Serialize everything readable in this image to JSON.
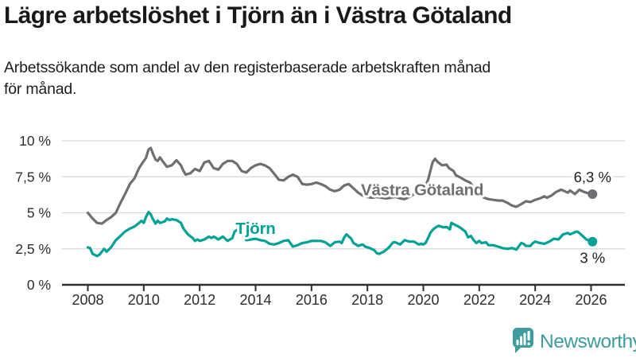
{
  "title": "Lägre arbetslöshet i Tjörn än i Västra Götaland",
  "subtitle": {
    "line1": "Arbetssökande som andel av den registerbaserade arbetskraften månad",
    "line2": "för månad."
  },
  "branding": {
    "logo_text": "Newsworthy",
    "logo_icon": "bar-chart-speech-bubble-icon"
  },
  "colors": {
    "background": "#ffffff",
    "tjorn_line": "#00a296",
    "vastra_line": "#6e6e73",
    "gridline": "#d8d8d8",
    "axis": "#2d2d2d",
    "tick_label": "#2d2d2d",
    "annotation_text": "#1f1f1f",
    "brand_teal": "#3f9c9c"
  },
  "chart_data": {
    "type": "line",
    "title": "Lägre arbetslöshet i Tjörn än i Västra Götaland",
    "xlabel": "",
    "ylabel": "",
    "grid": true,
    "ylim": [
      0,
      10
    ],
    "xlim": [
      2007.1,
      2027.2
    ],
    "y_ticks": [
      {
        "value": 10,
        "label": "10 %"
      },
      {
        "value": 7.5,
        "label": "7,5 %"
      },
      {
        "value": 5,
        "label": "5 %"
      },
      {
        "value": 2.5,
        "label": "2,5 %"
      },
      {
        "value": 0,
        "label": "0 %"
      }
    ],
    "x_ticks": [
      {
        "value": 2008,
        "label": "2008"
      },
      {
        "value": 2010,
        "label": "2010"
      },
      {
        "value": 2012,
        "label": "2012"
      },
      {
        "value": 2014,
        "label": "2014"
      },
      {
        "value": 2016,
        "label": "2016"
      },
      {
        "value": 2018,
        "label": "2018"
      },
      {
        "value": 2020,
        "label": "2020"
      },
      {
        "value": 2022,
        "label": "2022"
      },
      {
        "value": 2024,
        "label": "2024"
      },
      {
        "value": 2026,
        "label": "2026"
      }
    ],
    "series": [
      {
        "name": "Västra Götaland",
        "color": "#6e6e73",
        "end_label": "6,3 %",
        "end_value": 6.3,
        "end_label_side": "above",
        "inline_label": {
          "text": "Västra Götaland",
          "x": 2019.96,
          "y": 6.6
        },
        "points": [
          [
            2008.0,
            5.0
          ],
          [
            2008.17,
            4.6
          ],
          [
            2008.33,
            4.3
          ],
          [
            2008.5,
            4.25
          ],
          [
            2008.67,
            4.5
          ],
          [
            2008.83,
            4.7
          ],
          [
            2009.0,
            5.0
          ],
          [
            2009.17,
            5.7
          ],
          [
            2009.33,
            6.3
          ],
          [
            2009.5,
            7.0
          ],
          [
            2009.67,
            7.4
          ],
          [
            2009.83,
            8.1
          ],
          [
            2010.0,
            8.6
          ],
          [
            2010.08,
            8.8
          ],
          [
            2010.17,
            9.4
          ],
          [
            2010.25,
            9.5
          ],
          [
            2010.33,
            9.1
          ],
          [
            2010.42,
            8.7
          ],
          [
            2010.5,
            8.6
          ],
          [
            2010.58,
            8.85
          ],
          [
            2010.67,
            8.6
          ],
          [
            2010.75,
            8.4
          ],
          [
            2010.83,
            8.2
          ],
          [
            2011.0,
            8.3
          ],
          [
            2011.17,
            8.65
          ],
          [
            2011.33,
            8.3
          ],
          [
            2011.42,
            7.9
          ],
          [
            2011.5,
            7.65
          ],
          [
            2011.67,
            7.75
          ],
          [
            2011.83,
            8.05
          ],
          [
            2012.0,
            7.9
          ],
          [
            2012.17,
            8.5
          ],
          [
            2012.33,
            8.6
          ],
          [
            2012.5,
            8.1
          ],
          [
            2012.67,
            8.0
          ],
          [
            2012.83,
            8.4
          ],
          [
            2013.0,
            8.6
          ],
          [
            2013.17,
            8.6
          ],
          [
            2013.33,
            8.4
          ],
          [
            2013.5,
            7.9
          ],
          [
            2013.67,
            7.8
          ],
          [
            2013.83,
            8.1
          ],
          [
            2014.0,
            8.3
          ],
          [
            2014.17,
            8.4
          ],
          [
            2014.33,
            8.3
          ],
          [
            2014.5,
            8.1
          ],
          [
            2014.67,
            7.7
          ],
          [
            2014.83,
            7.3
          ],
          [
            2015.0,
            7.25
          ],
          [
            2015.17,
            7.5
          ],
          [
            2015.33,
            7.65
          ],
          [
            2015.5,
            7.5
          ],
          [
            2015.67,
            7.0
          ],
          [
            2015.83,
            6.95
          ],
          [
            2016.0,
            7.0
          ],
          [
            2016.17,
            7.1
          ],
          [
            2016.33,
            7.0
          ],
          [
            2016.5,
            6.85
          ],
          [
            2016.67,
            6.6
          ],
          [
            2016.83,
            6.5
          ],
          [
            2017.0,
            6.6
          ],
          [
            2017.17,
            6.9
          ],
          [
            2017.33,
            7.0
          ],
          [
            2017.5,
            6.7
          ],
          [
            2017.67,
            6.4
          ],
          [
            2017.83,
            6.2
          ],
          [
            2018.0,
            6.1
          ],
          [
            2018.17,
            6.05
          ],
          [
            2018.33,
            6.1
          ],
          [
            2018.5,
            6.05
          ],
          [
            2018.67,
            6.0
          ],
          [
            2018.83,
            6.05
          ],
          [
            2019.0,
            6.1
          ],
          [
            2019.17,
            6.0
          ],
          [
            2019.33,
            5.95
          ],
          [
            2019.5,
            6.1
          ],
          [
            2019.67,
            6.3
          ],
          [
            2019.83,
            6.45
          ],
          [
            2020.0,
            6.5
          ],
          [
            2020.17,
            7.3
          ],
          [
            2020.33,
            8.5
          ],
          [
            2020.42,
            8.75
          ],
          [
            2020.5,
            8.55
          ],
          [
            2020.67,
            8.3
          ],
          [
            2020.83,
            8.35
          ],
          [
            2020.92,
            8.1
          ],
          [
            2021.08,
            7.9
          ],
          [
            2021.17,
            7.6
          ],
          [
            2021.33,
            7.45
          ],
          [
            2021.5,
            7.25
          ],
          [
            2021.67,
            7.1
          ],
          [
            2021.83,
            6.7
          ],
          [
            2022.0,
            6.35
          ],
          [
            2022.17,
            6.05
          ],
          [
            2022.33,
            5.95
          ],
          [
            2022.5,
            5.9
          ],
          [
            2022.67,
            5.85
          ],
          [
            2022.83,
            5.85
          ],
          [
            2023.0,
            5.7
          ],
          [
            2023.17,
            5.5
          ],
          [
            2023.33,
            5.42
          ],
          [
            2023.5,
            5.6
          ],
          [
            2023.67,
            5.8
          ],
          [
            2023.83,
            5.75
          ],
          [
            2024.0,
            5.9
          ],
          [
            2024.17,
            6.0
          ],
          [
            2024.33,
            6.15
          ],
          [
            2024.42,
            6.05
          ],
          [
            2024.58,
            6.2
          ],
          [
            2024.75,
            6.45
          ],
          [
            2024.92,
            6.6
          ],
          [
            2025.0,
            6.55
          ],
          [
            2025.17,
            6.4
          ],
          [
            2025.25,
            6.55
          ],
          [
            2025.42,
            6.3
          ],
          [
            2025.58,
            6.6
          ],
          [
            2025.75,
            6.45
          ],
          [
            2025.92,
            6.35
          ],
          [
            2026.05,
            6.3
          ]
        ]
      },
      {
        "name": "Tjörn",
        "color": "#00a296",
        "end_label": "3 %",
        "end_value": 3.0,
        "end_label_side": "below",
        "inline_label": {
          "text": "Tjörn",
          "x": 2014.0,
          "y": 3.92
        },
        "points": [
          [
            2008.0,
            2.6
          ],
          [
            2008.08,
            2.55
          ],
          [
            2008.17,
            2.15
          ],
          [
            2008.33,
            2.0
          ],
          [
            2008.42,
            2.1
          ],
          [
            2008.5,
            2.3
          ],
          [
            2008.58,
            2.5
          ],
          [
            2008.67,
            2.3
          ],
          [
            2008.83,
            2.6
          ],
          [
            2009.0,
            3.1
          ],
          [
            2009.17,
            3.4
          ],
          [
            2009.33,
            3.7
          ],
          [
            2009.5,
            3.9
          ],
          [
            2009.67,
            4.05
          ],
          [
            2009.83,
            4.3
          ],
          [
            2009.92,
            4.45
          ],
          [
            2010.0,
            4.3
          ],
          [
            2010.08,
            4.7
          ],
          [
            2010.17,
            5.05
          ],
          [
            2010.25,
            4.9
          ],
          [
            2010.33,
            4.55
          ],
          [
            2010.42,
            4.25
          ],
          [
            2010.5,
            4.45
          ],
          [
            2010.58,
            4.3
          ],
          [
            2010.75,
            4.4
          ],
          [
            2010.83,
            4.6
          ],
          [
            2010.92,
            4.5
          ],
          [
            2011.0,
            4.55
          ],
          [
            2011.17,
            4.5
          ],
          [
            2011.33,
            4.3
          ],
          [
            2011.42,
            3.9
          ],
          [
            2011.58,
            3.5
          ],
          [
            2011.75,
            3.25
          ],
          [
            2011.83,
            3.05
          ],
          [
            2011.92,
            3.15
          ],
          [
            2012.0,
            3.05
          ],
          [
            2012.17,
            3.15
          ],
          [
            2012.33,
            3.35
          ],
          [
            2012.42,
            3.25
          ],
          [
            2012.5,
            3.35
          ],
          [
            2012.67,
            3.15
          ],
          [
            2012.83,
            3.35
          ],
          [
            2013.0,
            3.05
          ],
          [
            2013.17,
            3.25
          ],
          [
            2013.25,
            3.7
          ],
          [
            2013.42,
            3.9
          ],
          [
            2013.5,
            3.6
          ],
          [
            2013.67,
            3.1
          ],
          [
            2013.83,
            3.15
          ],
          [
            2014.0,
            3.2
          ],
          [
            2014.17,
            3.1
          ],
          [
            2014.33,
            3.05
          ],
          [
            2014.5,
            2.85
          ],
          [
            2014.67,
            2.8
          ],
          [
            2014.83,
            2.9
          ],
          [
            2015.0,
            3.05
          ],
          [
            2015.17,
            3.1
          ],
          [
            2015.33,
            2.65
          ],
          [
            2015.5,
            2.75
          ],
          [
            2015.67,
            2.9
          ],
          [
            2015.83,
            2.95
          ],
          [
            2016.0,
            3.05
          ],
          [
            2016.17,
            3.05
          ],
          [
            2016.33,
            3.05
          ],
          [
            2016.5,
            2.95
          ],
          [
            2016.67,
            2.7
          ],
          [
            2016.83,
            2.95
          ],
          [
            2017.0,
            3.0
          ],
          [
            2017.08,
            2.9
          ],
          [
            2017.17,
            3.3
          ],
          [
            2017.25,
            3.5
          ],
          [
            2017.42,
            3.2
          ],
          [
            2017.5,
            2.9
          ],
          [
            2017.67,
            2.7
          ],
          [
            2017.83,
            2.8
          ],
          [
            2017.92,
            2.65
          ],
          [
            2018.08,
            2.55
          ],
          [
            2018.25,
            2.4
          ],
          [
            2018.33,
            2.2
          ],
          [
            2018.42,
            2.15
          ],
          [
            2018.58,
            2.3
          ],
          [
            2018.75,
            2.55
          ],
          [
            2018.92,
            2.95
          ],
          [
            2019.0,
            2.95
          ],
          [
            2019.17,
            2.8
          ],
          [
            2019.33,
            3.1
          ],
          [
            2019.5,
            3.0
          ],
          [
            2019.67,
            3.0
          ],
          [
            2019.83,
            2.8
          ],
          [
            2019.92,
            2.85
          ],
          [
            2020.0,
            2.8
          ],
          [
            2020.08,
            2.9
          ],
          [
            2020.17,
            3.25
          ],
          [
            2020.25,
            3.6
          ],
          [
            2020.35,
            3.85
          ],
          [
            2020.45,
            4.0
          ],
          [
            2020.55,
            4.1
          ],
          [
            2020.7,
            4.0
          ],
          [
            2020.85,
            4.0
          ],
          [
            2020.95,
            3.85
          ],
          [
            2021.0,
            4.3
          ],
          [
            2021.1,
            4.2
          ],
          [
            2021.2,
            4.1
          ],
          [
            2021.3,
            4.0
          ],
          [
            2021.4,
            3.85
          ],
          [
            2021.5,
            3.7
          ],
          [
            2021.6,
            3.3
          ],
          [
            2021.7,
            3.4
          ],
          [
            2021.8,
            3.1
          ],
          [
            2021.9,
            2.9
          ],
          [
            2022.0,
            3.05
          ],
          [
            2022.08,
            2.9
          ],
          [
            2022.25,
            2.95
          ],
          [
            2022.33,
            2.75
          ],
          [
            2022.5,
            2.75
          ],
          [
            2022.67,
            2.65
          ],
          [
            2022.83,
            2.55
          ],
          [
            2023.0,
            2.5
          ],
          [
            2023.17,
            2.55
          ],
          [
            2023.33,
            2.45
          ],
          [
            2023.5,
            2.9
          ],
          [
            2023.58,
            2.85
          ],
          [
            2023.67,
            2.7
          ],
          [
            2023.83,
            2.7
          ],
          [
            2023.92,
            2.9
          ],
          [
            2024.0,
            3.0
          ],
          [
            2024.17,
            2.9
          ],
          [
            2024.33,
            2.85
          ],
          [
            2024.5,
            3.0
          ],
          [
            2024.67,
            3.2
          ],
          [
            2024.83,
            3.15
          ],
          [
            2025.0,
            3.5
          ],
          [
            2025.17,
            3.6
          ],
          [
            2025.25,
            3.5
          ],
          [
            2025.42,
            3.65
          ],
          [
            2025.5,
            3.7
          ],
          [
            2025.58,
            3.6
          ],
          [
            2025.75,
            3.3
          ],
          [
            2025.83,
            3.15
          ],
          [
            2026.05,
            3.0
          ]
        ]
      }
    ]
  }
}
